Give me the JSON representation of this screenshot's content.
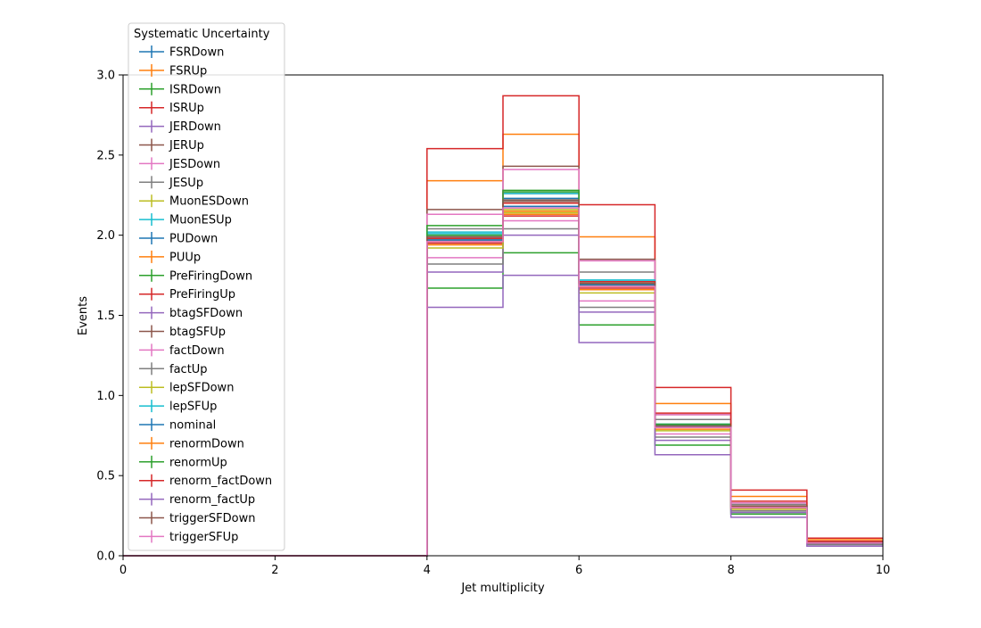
{
  "chart_data": {
    "type": "line",
    "drawstyle": "steps",
    "xlabel": "Jet multiplicity",
    "ylabel": "Events",
    "xlim": [
      0,
      10
    ],
    "ylim": [
      0,
      3.0
    ],
    "xticks": [
      "0",
      "2",
      "4",
      "6",
      "8",
      "10"
    ],
    "yticks": [
      "0.0",
      "0.5",
      "1.0",
      "1.5",
      "2.0",
      "2.5",
      "3.0"
    ],
    "bin_edges": [
      0,
      1,
      2,
      3,
      4,
      5,
      6,
      7,
      8,
      9,
      10
    ],
    "legend": {
      "title": "Systematic Uncertainty",
      "placement": "upper-left"
    },
    "series": [
      {
        "name": "FSRDown",
        "color": "#1f77b4",
        "values": [
          0,
          0,
          0,
          0,
          1.97,
          2.18,
          1.7,
          0.81,
          0.3,
          0.08
        ]
      },
      {
        "name": "FSRUp",
        "color": "#ff7f0e",
        "values": [
          0,
          0,
          0,
          0,
          2.34,
          2.63,
          1.99,
          0.95,
          0.37,
          0.1
        ]
      },
      {
        "name": "ISRDown",
        "color": "#2ca02c",
        "values": [
          0,
          0,
          0,
          0,
          1.67,
          1.89,
          1.44,
          0.69,
          0.26,
          0.07
        ]
      },
      {
        "name": "ISRUp",
        "color": "#d62728",
        "values": [
          0,
          0,
          0,
          0,
          2.54,
          2.87,
          2.19,
          1.05,
          0.41,
          0.11
        ]
      },
      {
        "name": "JERDown",
        "color": "#9467bd",
        "values": [
          0,
          0,
          0,
          0,
          1.96,
          2.2,
          1.68,
          0.8,
          0.3,
          0.08
        ]
      },
      {
        "name": "JERUp",
        "color": "#8c564b",
        "values": [
          0,
          0,
          0,
          0,
          1.97,
          2.21,
          1.69,
          0.81,
          0.3,
          0.08
        ]
      },
      {
        "name": "JESDown",
        "color": "#e377c2",
        "values": [
          0,
          0,
          0,
          0,
          1.86,
          2.09,
          1.59,
          0.76,
          0.29,
          0.08
        ]
      },
      {
        "name": "JESUp",
        "color": "#7f7f7f",
        "values": [
          0,
          0,
          0,
          0,
          2.04,
          2.26,
          1.77,
          0.85,
          0.32,
          0.08
        ]
      },
      {
        "name": "MuonESDown",
        "color": "#bcbd22",
        "values": [
          0,
          0,
          0,
          0,
          1.95,
          2.16,
          1.68,
          0.8,
          0.3,
          0.08
        ]
      },
      {
        "name": "MuonESUp",
        "color": "#17becf",
        "values": [
          0,
          0,
          0,
          0,
          2.01,
          2.26,
          1.72,
          0.82,
          0.31,
          0.08
        ]
      },
      {
        "name": "PUDown",
        "color": "#1f77b4",
        "values": [
          0,
          0,
          0,
          0,
          1.99,
          2.23,
          1.71,
          0.82,
          0.31,
          0.08
        ]
      },
      {
        "name": "PUUp",
        "color": "#ff7f0e",
        "values": [
          0,
          0,
          0,
          0,
          1.94,
          2.13,
          1.66,
          0.79,
          0.3,
          0.08
        ]
      },
      {
        "name": "PreFiringDown",
        "color": "#2ca02c",
        "values": [
          0,
          0,
          0,
          0,
          2.0,
          2.27,
          1.7,
          0.82,
          0.31,
          0.08
        ]
      },
      {
        "name": "PreFiringUp",
        "color": "#d62728",
        "values": [
          0,
          0,
          0,
          0,
          1.95,
          2.12,
          1.67,
          0.8,
          0.3,
          0.08
        ]
      },
      {
        "name": "btagSFDown",
        "color": "#9467bd",
        "values": [
          0,
          0,
          0,
          0,
          1.77,
          2.0,
          1.52,
          0.72,
          0.27,
          0.07
        ]
      },
      {
        "name": "btagSFUp",
        "color": "#8c564b",
        "values": [
          0,
          0,
          0,
          0,
          2.16,
          2.43,
          1.85,
          0.88,
          0.33,
          0.09
        ]
      },
      {
        "name": "factDown",
        "color": "#e377c2",
        "values": [
          0,
          0,
          0,
          0,
          2.13,
          2.41,
          1.84,
          0.88,
          0.33,
          0.09
        ]
      },
      {
        "name": "factUp",
        "color": "#7f7f7f",
        "values": [
          0,
          0,
          0,
          0,
          1.82,
          2.04,
          1.55,
          0.74,
          0.28,
          0.07
        ]
      },
      {
        "name": "lepSFDown",
        "color": "#bcbd22",
        "values": [
          0,
          0,
          0,
          0,
          1.92,
          2.14,
          1.64,
          0.78,
          0.29,
          0.08
        ]
      },
      {
        "name": "lepSFUp",
        "color": "#17becf",
        "values": [
          0,
          0,
          0,
          0,
          2.02,
          2.22,
          1.72,
          0.82,
          0.31,
          0.08
        ]
      },
      {
        "name": "nominal",
        "color": "#1f77b4",
        "values": [
          0,
          0,
          0,
          0,
          1.97,
          2.18,
          1.69,
          0.81,
          0.3,
          0.08
        ]
      },
      {
        "name": "renormDown",
        "color": "#ff7f0e",
        "values": [
          0,
          0,
          0,
          0,
          1.96,
          2.15,
          1.68,
          0.8,
          0.3,
          0.08
        ]
      },
      {
        "name": "renormUp",
        "color": "#2ca02c",
        "values": [
          0,
          0,
          0,
          0,
          2.06,
          2.28,
          1.7,
          0.82,
          0.31,
          0.08
        ]
      },
      {
        "name": "renorm_factDown",
        "color": "#d62728",
        "values": [
          0,
          0,
          0,
          0,
          1.98,
          2.2,
          1.71,
          0.89,
          0.34,
          0.09
        ]
      },
      {
        "name": "renorm_factUp",
        "color": "#9467bd",
        "values": [
          0,
          0,
          0,
          0,
          1.55,
          1.75,
          1.33,
          0.63,
          0.24,
          0.06
        ]
      },
      {
        "name": "triggerSFDown",
        "color": "#8c564b",
        "values": [
          0,
          0,
          0,
          0,
          1.99,
          2.22,
          1.7,
          0.81,
          0.31,
          0.08
        ]
      },
      {
        "name": "triggerSFUp",
        "color": "#e377c2",
        "values": [
          0,
          0,
          0,
          0,
          1.96,
          2.17,
          1.68,
          0.8,
          0.3,
          0.08
        ]
      }
    ]
  }
}
